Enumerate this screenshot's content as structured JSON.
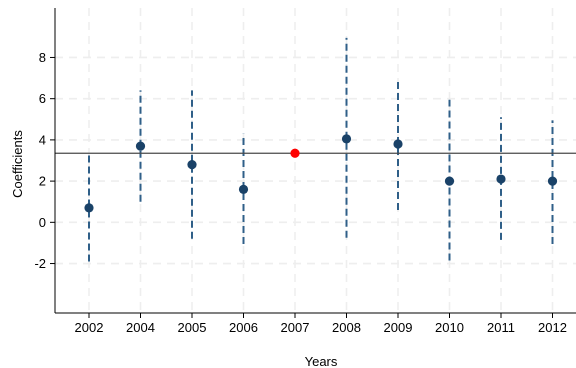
{
  "chart_data": {
    "type": "scatter",
    "title": "",
    "xlabel": "Years",
    "ylabel": "Coefficients",
    "categories": [
      "2002",
      "2004",
      "2005",
      "2006",
      "2007",
      "2008",
      "2009",
      "2010",
      "2011",
      "2012"
    ],
    "series": [
      {
        "values": [
          0.7,
          3.7,
          2.8,
          1.6,
          3.35,
          4.05,
          3.8,
          2.0,
          2.1,
          2.0
        ],
        "ci_low": [
          -1.9,
          1.0,
          -0.8,
          -1.05,
          null,
          -0.75,
          0.6,
          -1.85,
          -0.85,
          -1.05
        ],
        "ci_high": [
          3.3,
          6.4,
          6.4,
          4.3,
          null,
          8.95,
          7.0,
          5.95,
          5.1,
          4.95
        ]
      }
    ],
    "reference_line": 3.35,
    "highlight_category": "2007",
    "yticks": [
      -2,
      0,
      2,
      4,
      6,
      8
    ],
    "ylim": [
      -4.4,
      10.4
    ],
    "grid": true,
    "legend": "none",
    "colors": {
      "point": "#1a4268",
      "ci": "#2f5f88",
      "highlight": "#ff0000",
      "reference": "#4a4a4a",
      "grid": "#eeeeee",
      "axis": "#000000"
    }
  }
}
